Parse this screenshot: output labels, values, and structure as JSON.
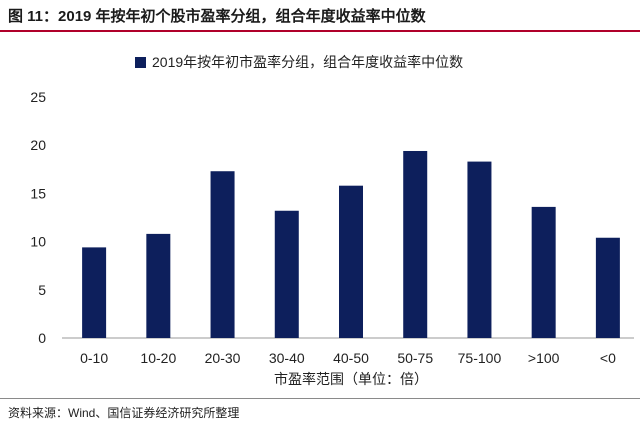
{
  "figure": {
    "title": "图 11：2019 年按年初个股市盈率分组，组合年度收益率中位数",
    "source": "资料来源：Wind、国信证券经济研究所整理"
  },
  "chart_data": {
    "type": "bar",
    "categories": [
      "0-10",
      "10-20",
      "20-30",
      "30-40",
      "40-50",
      "50-75",
      "75-100",
      ">100",
      "<0"
    ],
    "series": [
      {
        "name": "2019年按年初市盈率分组，组合年度收益率中位数",
        "values": [
          9.4,
          10.8,
          17.3,
          13.2,
          15.8,
          19.4,
          18.3,
          13.6,
          10.4
        ],
        "color": "#0d1f5c"
      }
    ],
    "xlabel": "市盈率范围（单位：倍）",
    "ylabel": "",
    "ylim": [
      0,
      25
    ],
    "yticks": [
      0,
      5,
      10,
      15,
      20,
      25
    ],
    "legend": "top-center",
    "grid": false
  }
}
